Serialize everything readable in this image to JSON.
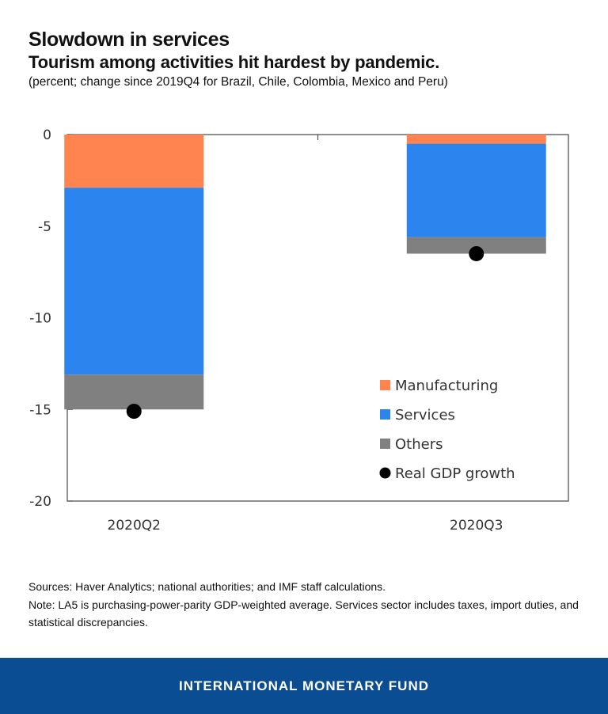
{
  "header": {
    "title": "Slowdown in services",
    "subtitle": "Tourism among activities hit hardest by pandemic.",
    "units": "(percent; change since 2019Q4 for Brazil, Chile, Colombia, Mexico and Peru)"
  },
  "chart_data": {
    "type": "bar",
    "stacked": true,
    "title": "Slowdown in services",
    "xlabel": "",
    "ylabel": "percent",
    "categories": [
      "2020Q2",
      "2020Q3"
    ],
    "ylim": [
      -20,
      0
    ],
    "yticks": [
      0,
      -5,
      -10,
      -15,
      -20
    ],
    "ytick_labels": [
      "0",
      "-5",
      "-10",
      "-15",
      "-20"
    ],
    "grid": false,
    "legend_position": "bottom-right",
    "series": [
      {
        "name": "Manufacturing",
        "kind": "bar",
        "color": "#FF8450",
        "values": [
          -2.9,
          -0.5
        ]
      },
      {
        "name": "Services",
        "kind": "bar",
        "color": "#2C85EE",
        "values": [
          -10.2,
          -5.1
        ]
      },
      {
        "name": "Others",
        "kind": "bar",
        "color": "#808080",
        "values": [
          -1.9,
          -0.9
        ]
      },
      {
        "name": "Real GDP growth",
        "kind": "marker",
        "color": "#000000",
        "values": [
          -15.1,
          -6.5
        ]
      }
    ]
  },
  "notes": {
    "sources": "Sources: Haver Analytics; national authorities; and IMF staff calculations.",
    "note": "Note: LA5 is purchasing-power-parity GDP-weighted average. Services sector includes taxes, import duties, and statistical discrepancies."
  },
  "footer": {
    "label": "INTERNATIONAL MONETARY FUND",
    "color": "#0B4D93"
  }
}
